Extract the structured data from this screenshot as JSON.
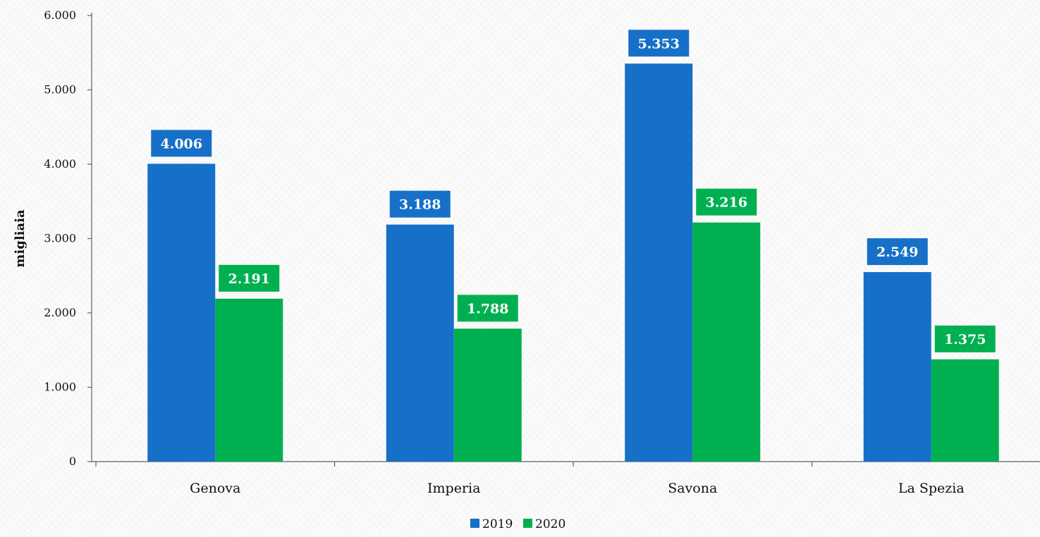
{
  "chart_data": {
    "type": "bar",
    "categories": [
      "Genova",
      "Imperia",
      "Savona",
      "La Spezia"
    ],
    "series": [
      {
        "name": "2019",
        "values": [
          4006,
          3188,
          5353,
          2549
        ],
        "labels": [
          "4.006",
          "3.188",
          "5.353",
          "2.549"
        ],
        "color": "#1670c8"
      },
      {
        "name": "2020",
        "values": [
          2191,
          1788,
          3216,
          1375
        ],
        "labels": [
          "2.191",
          "1.788",
          "3.216",
          "1.375"
        ],
        "color": "#00b050"
      }
    ],
    "ylabel": "migliaia",
    "xlabel": "",
    "ylim": [
      0,
      6000
    ],
    "yticks": [
      0,
      1000,
      2000,
      3000,
      4000,
      5000,
      6000
    ],
    "ytick_labels": [
      "0",
      "1.000",
      "2.000",
      "3.000",
      "4.000",
      "5.000",
      "6.000"
    ],
    "grid": false,
    "legend_position": "bottom-center"
  }
}
